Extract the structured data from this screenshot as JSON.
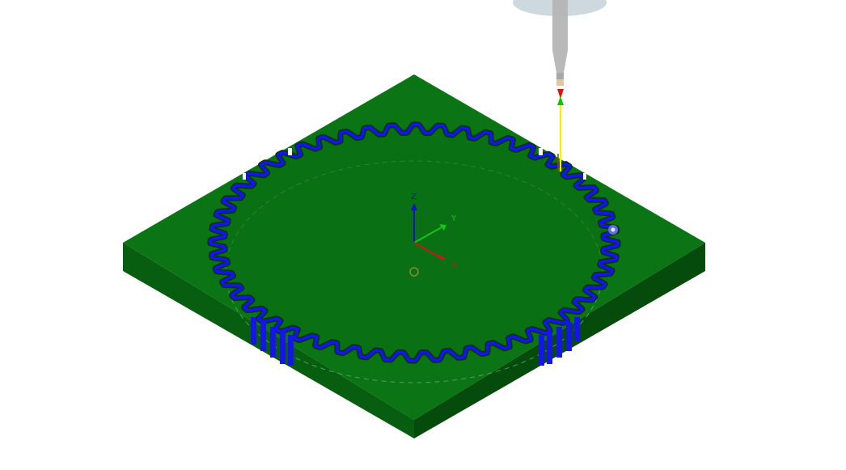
{
  "viewport": {
    "background": "#ffffff"
  },
  "workpiece": {
    "top_color": "#0b7414",
    "left_side_color": "#075e10",
    "right_side_color": "#054b0c",
    "toolpath_color": "#1515e6",
    "gear_teeth": 52
  },
  "axis_triad": {
    "z_label": "Z",
    "y_label": "Y",
    "x_label": "X",
    "z_color": "#1010d0",
    "y_color": "#16c416",
    "x_color": "#c81818"
  },
  "tool": {
    "holder_color": "#c4d2d8",
    "shank_color": "#b5b5b5",
    "tool_axis_color": "#f2f200",
    "tip_color": "#e01010",
    "direction_color": "#10c010"
  },
  "markers": {
    "origin_marker_icon": "origin-circle-icon",
    "contact_marker_icon": "contact-point-icon"
  }
}
